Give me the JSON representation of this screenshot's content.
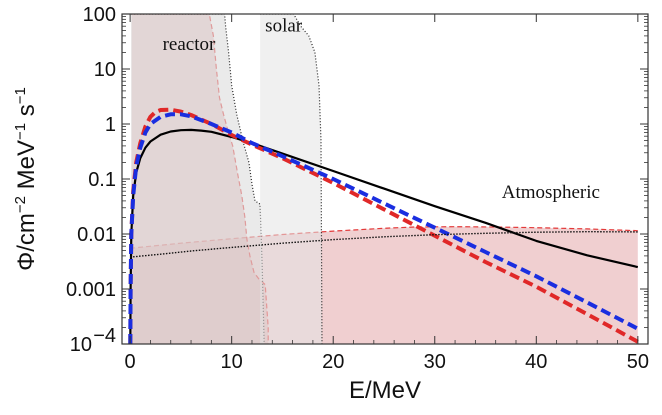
{
  "chart_data": {
    "type": "line",
    "title": "",
    "xlabel": "E/MeV",
    "ylabel": "Φ/cm^-2 MeV^-1 s^-1",
    "ylabel_parts": {
      "base": "Φ/cm",
      "exp1": "−2",
      "mid": " MeV",
      "exp2": "−1",
      "tail": " s",
      "exp3": "−1"
    },
    "xlim": [
      -0.8,
      51
    ],
    "ylim": [
      0.0001,
      100
    ],
    "yscale": "log",
    "grid": false,
    "legend": "none",
    "x_ticks": [
      0,
      10,
      20,
      30,
      40,
      50
    ],
    "x_tick_labels": [
      "0",
      "10",
      "20",
      "30",
      "40",
      "50"
    ],
    "y_ticks": [
      0.0001,
      0.001,
      0.01,
      0.1,
      1,
      10,
      100
    ],
    "y_tick_labels": [
      {
        "base": "10",
        "exp": "−4"
      },
      {
        "base": "0.001"
      },
      {
        "base": "0.01"
      },
      {
        "base": "0.1"
      },
      {
        "base": "1"
      },
      {
        "base": "10"
      },
      {
        "base": "100"
      }
    ],
    "annotations": [
      {
        "text": "reactor",
        "x": 3.2,
        "y": 22
      },
      {
        "text": "solar",
        "x": 13.3,
        "y": 48
      },
      {
        "text": "Atmospheric",
        "x": 36.6,
        "y": 0.045
      }
    ],
    "regions": [
      {
        "name": "reactor",
        "fill": "#d9a3a3",
        "opacity": 0.55,
        "stroke": "#e33a3a",
        "dash": "5,3",
        "upper": [
          [
            0.15,
            100
          ],
          [
            7.8,
            100
          ],
          [
            8.2,
            40
          ],
          [
            8.5,
            10
          ],
          [
            8.8,
            3
          ],
          [
            9.2,
            1.5
          ],
          [
            9.6,
            0.8
          ],
          [
            10.1,
            0.4
          ],
          [
            10.6,
            0.12
          ],
          [
            11.0,
            0.05
          ],
          [
            11.3,
            0.02
          ],
          [
            11.5,
            0.008
          ],
          [
            11.8,
            0.004
          ],
          [
            12.2,
            0.002
          ],
          [
            12.7,
            0.0015
          ],
          [
            13.3,
            0.0012
          ],
          [
            13.6,
            0.0002
          ],
          [
            13.6,
            0.0001
          ]
        ]
      },
      {
        "name": "solar",
        "fill": "#dcdcdc",
        "opacity": 0.6,
        "stroke": "#222222",
        "dash": "1,2",
        "upper": [
          [
            0.1,
            100
          ],
          [
            9.3,
            100
          ],
          [
            9.4,
            60
          ],
          [
            9.7,
            20
          ],
          [
            10.0,
            5
          ],
          [
            10.5,
            1.5
          ],
          [
            11.1,
            0.5
          ],
          [
            11.7,
            0.2
          ],
          [
            12.0,
            0.08
          ],
          [
            12.3,
            0.04
          ],
          [
            12.8,
            0.035
          ],
          [
            13.0,
            0.003
          ],
          [
            13.2,
            0.0001
          ]
        ]
      },
      {
        "name": "solar-hep",
        "fill": "#e4e4e4",
        "opacity": 0.55,
        "stroke": "#222222",
        "dash": "1,2",
        "upper": [
          [
            12.8,
            100
          ],
          [
            16.1,
            100
          ],
          [
            16.8,
            60
          ],
          [
            17.6,
            40
          ],
          [
            18.2,
            20
          ],
          [
            18.6,
            5
          ],
          [
            18.8,
            0.5
          ],
          [
            18.9,
            0.0001
          ]
        ],
        "lower": [
          [
            12.8,
            0.0001
          ]
        ]
      },
      {
        "name": "atmospheric-band",
        "fill": "#e3a7aa",
        "opacity": 0.55,
        "stroke": "#e33a3a",
        "dash": "5,3",
        "upper": [
          [
            0,
            0.0055
          ],
          [
            5,
            0.0068
          ],
          [
            10,
            0.0082
          ],
          [
            15,
            0.0098
          ],
          [
            20,
            0.0113
          ],
          [
            25,
            0.0127
          ],
          [
            28,
            0.0134
          ],
          [
            32,
            0.0136
          ],
          [
            36,
            0.0134
          ],
          [
            40,
            0.013
          ],
          [
            45,
            0.0124
          ],
          [
            50,
            0.0115
          ]
        ]
      }
    ],
    "series": [
      {
        "name": "",
        "color": "#000000",
        "style": "solid",
        "width": 2.2,
        "points": [
          [
            0.02,
            0.0001
          ],
          [
            0.05,
            0.001
          ],
          [
            0.12,
            0.01
          ],
          [
            0.3,
            0.05
          ],
          [
            0.6,
            0.13
          ],
          [
            1,
            0.24
          ],
          [
            1.5,
            0.37
          ],
          [
            2,
            0.48
          ],
          [
            3,
            0.64
          ],
          [
            4,
            0.73
          ],
          [
            5,
            0.77
          ],
          [
            6,
            0.78
          ],
          [
            7,
            0.76
          ],
          [
            8,
            0.72
          ],
          [
            10,
            0.58
          ],
          [
            12,
            0.45
          ],
          [
            15,
            0.29
          ],
          [
            20,
            0.14
          ],
          [
            25,
            0.067
          ],
          [
            30,
            0.032
          ],
          [
            35,
            0.016
          ],
          [
            40,
            0.0075
          ],
          [
            45,
            0.0041
          ],
          [
            50,
            0.0025
          ]
        ]
      },
      {
        "name": "",
        "color": "#e02828",
        "style": "dashed",
        "width": 4,
        "points": [
          [
            0.02,
            0.0001
          ],
          [
            0.05,
            0.001
          ],
          [
            0.12,
            0.01
          ],
          [
            0.3,
            0.06
          ],
          [
            0.6,
            0.2
          ],
          [
            1,
            0.45
          ],
          [
            1.5,
            0.9
          ],
          [
            2,
            1.35
          ],
          [
            2.5,
            1.65
          ],
          [
            3,
            1.8
          ],
          [
            4,
            1.82
          ],
          [
            5,
            1.68
          ],
          [
            6,
            1.46
          ],
          [
            8,
            1.0
          ],
          [
            10,
            0.63
          ],
          [
            12,
            0.42
          ],
          [
            15,
            0.24
          ],
          [
            20,
            0.085
          ],
          [
            25,
            0.028
          ],
          [
            30,
            0.0093
          ],
          [
            35,
            0.0031
          ],
          [
            40,
            0.0011
          ],
          [
            45,
            0.00035
          ],
          [
            50,
            0.00011
          ]
        ]
      },
      {
        "name": "",
        "color": "#1a2ee0",
        "style": "dashed",
        "width": 4,
        "points": [
          [
            0.02,
            0.0001
          ],
          [
            0.05,
            0.001
          ],
          [
            0.12,
            0.01
          ],
          [
            0.3,
            0.05
          ],
          [
            0.6,
            0.17
          ],
          [
            1,
            0.37
          ],
          [
            1.5,
            0.7
          ],
          [
            2,
            1.0
          ],
          [
            3,
            1.35
          ],
          [
            4,
            1.5
          ],
          [
            5,
            1.5
          ],
          [
            6,
            1.38
          ],
          [
            8,
            1.0
          ],
          [
            10,
            0.7
          ],
          [
            12,
            0.45
          ],
          [
            15,
            0.26
          ],
          [
            20,
            0.1
          ],
          [
            25,
            0.036
          ],
          [
            30,
            0.013
          ],
          [
            35,
            0.0047
          ],
          [
            40,
            0.0017
          ],
          [
            45,
            0.00057
          ],
          [
            50,
            0.00019
          ]
        ]
      },
      {
        "name": "",
        "color": "#111111",
        "style": "dotted",
        "width": 1.4,
        "points": [
          [
            0,
            0.0038
          ],
          [
            3,
            0.0043
          ],
          [
            6,
            0.0049
          ],
          [
            10,
            0.0057
          ],
          [
            15,
            0.0068
          ],
          [
            20,
            0.0079
          ],
          [
            25,
            0.0089
          ],
          [
            30,
            0.0097
          ],
          [
            35,
            0.0103
          ],
          [
            40,
            0.0108
          ],
          [
            45,
            0.011
          ],
          [
            50,
            0.0109
          ]
        ]
      }
    ]
  }
}
